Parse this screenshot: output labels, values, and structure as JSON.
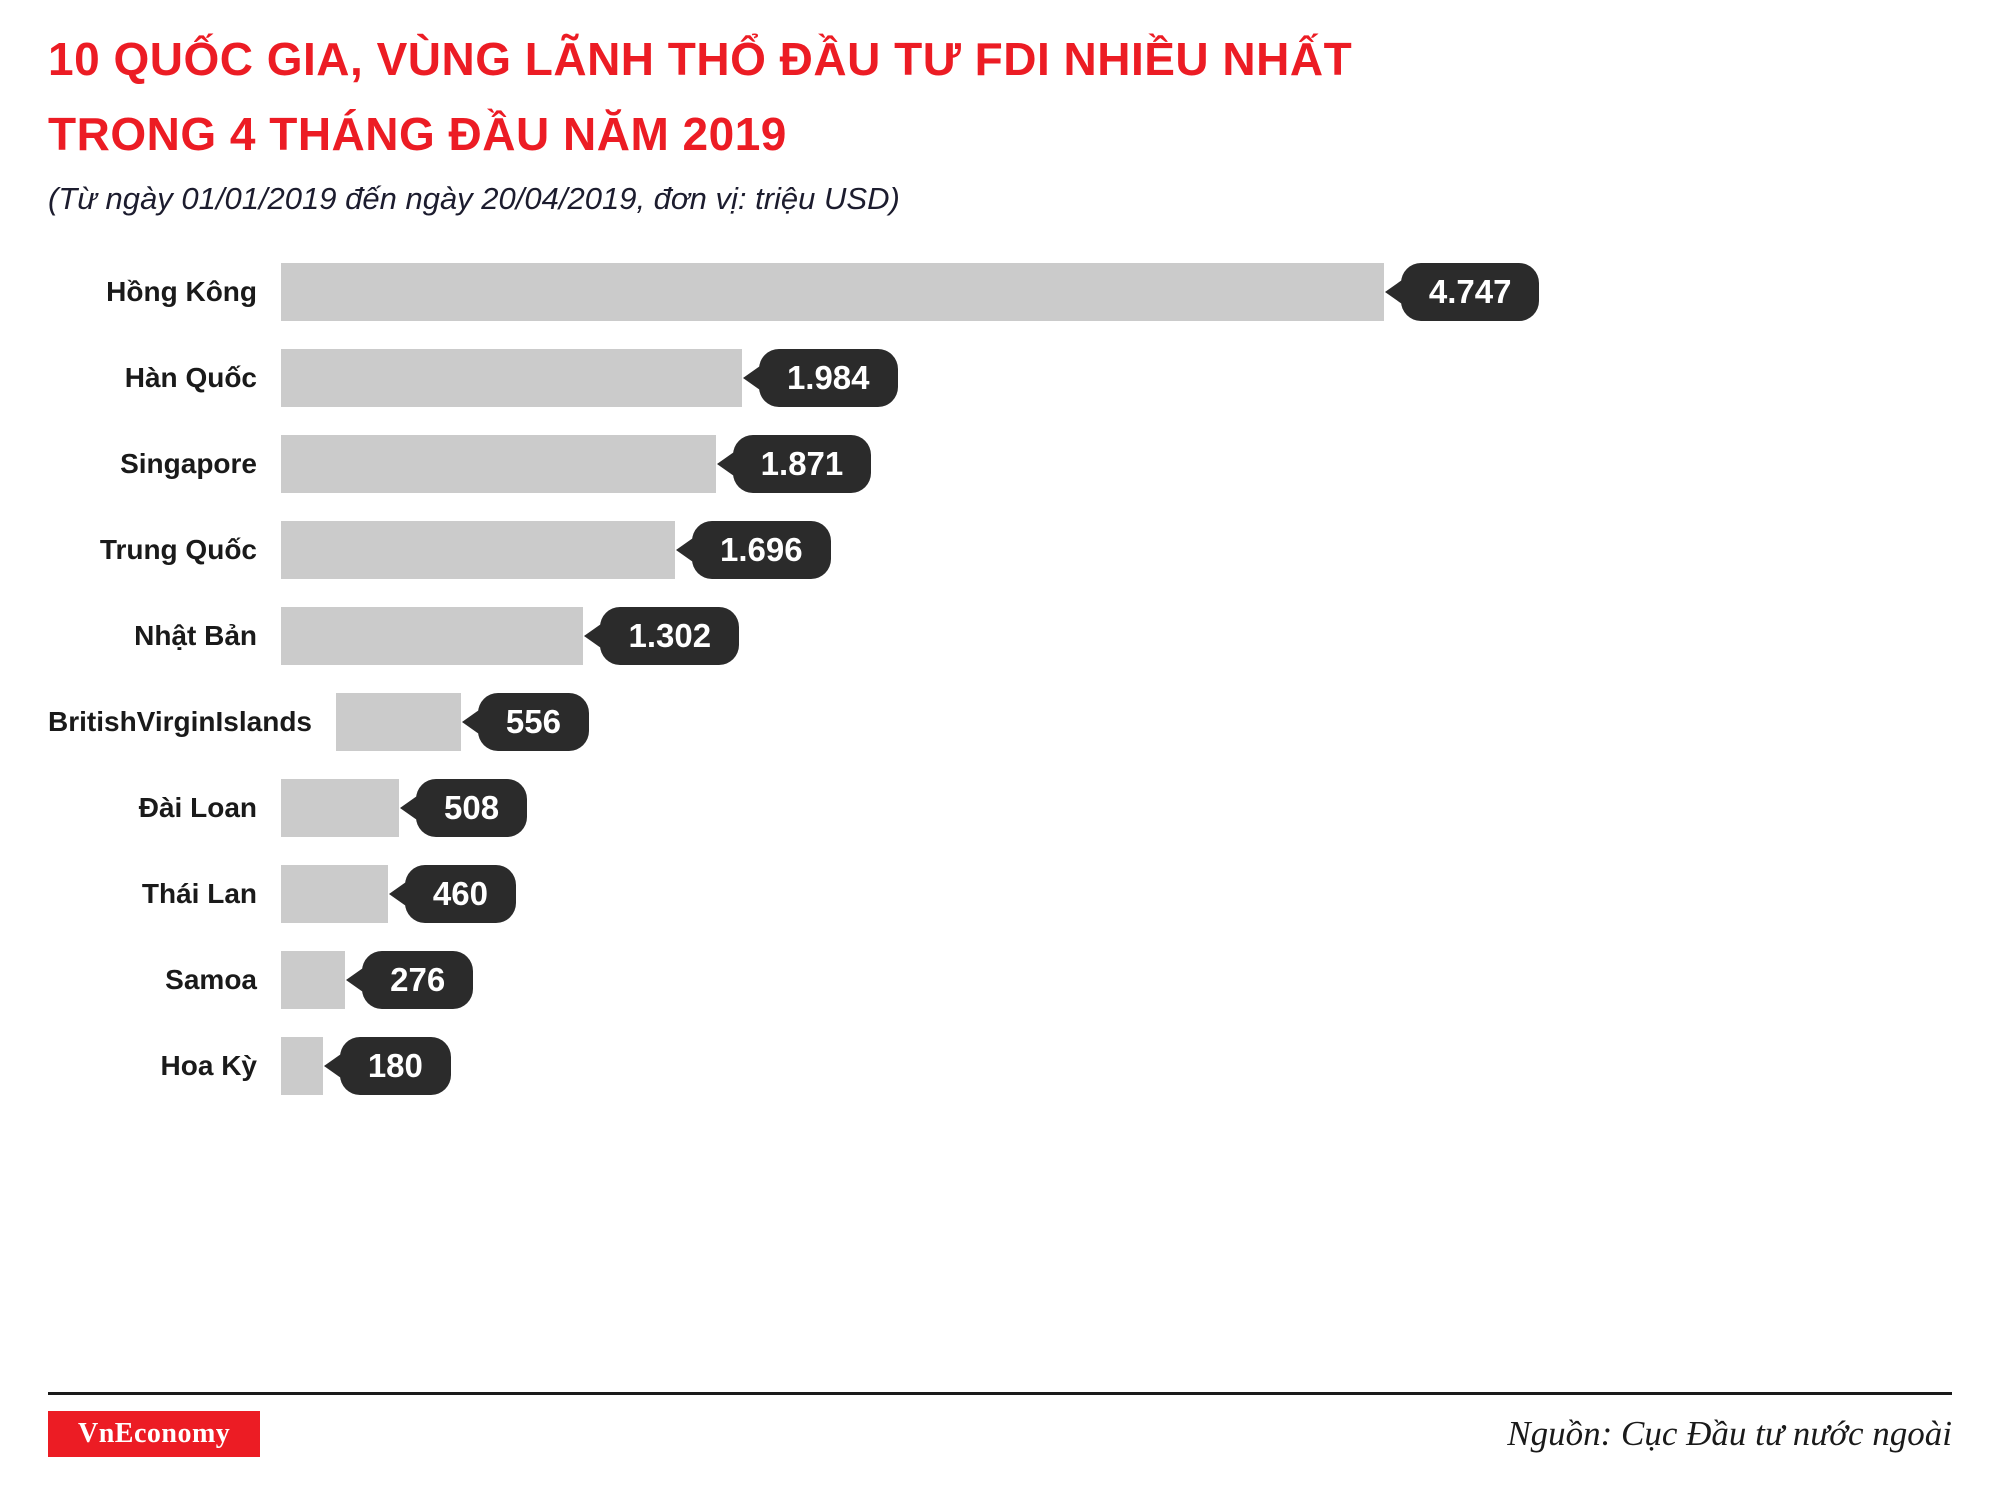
{
  "header": {
    "title_line1": "10 QUỐC GIA, VÙNG LÃNH THỔ ĐẦU TƯ FDI NHIỀU NHẤT",
    "title_line2": "TRONG 4 THÁNG ĐẦU NĂM 2019",
    "subtitle": "(Từ ngày 01/01/2019 đến ngày 20/04/2019, đơn vị: triệu USD)"
  },
  "chart_data": {
    "type": "bar",
    "orientation": "horizontal",
    "title": "10 quốc gia, vùng lãnh thổ đầu tư FDI nhiều nhất trong 4 tháng đầu năm 2019",
    "unit": "triệu USD",
    "period": "01/01/2019 - 20/04/2019",
    "categories": [
      "Hồng Kông",
      "Hàn Quốc",
      "Singapore",
      "Trung Quốc",
      "Nhật Bản",
      "BritishVirginIslands",
      "Đài Loan",
      "Thái Lan",
      "Samoa",
      "Hoa Kỳ"
    ],
    "values": [
      4747,
      1984,
      1871,
      1696,
      1302,
      556,
      508,
      460,
      276,
      180
    ],
    "value_labels": [
      "4.747",
      "1.984",
      "1.871",
      "1.696",
      "1.302",
      "556",
      "508",
      "460",
      "276",
      "180"
    ],
    "xlim": [
      0,
      4747
    ],
    "grid": false,
    "legend": false
  },
  "footer": {
    "logo_text": "VnEconomy",
    "source": "Nguồn: Cục Đầu tư nước ngoài"
  },
  "colors": {
    "title_red": "#ec1c24",
    "bar_gray": "#cbcbcb",
    "badge_dark": "#2b2b2b",
    "text_dark": "#1a1a1a"
  }
}
